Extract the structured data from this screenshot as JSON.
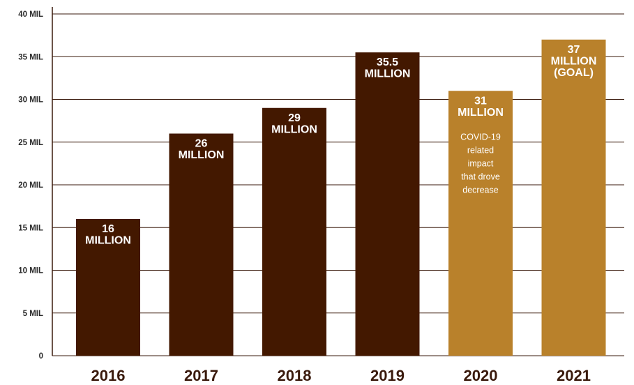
{
  "colors": {
    "actual": "#431800",
    "projected": "#b9812b",
    "grid": "#3a1a0c",
    "category_text": "#3a1a0c"
  },
  "chart_data": {
    "type": "bar",
    "categories": [
      "2016",
      "2017",
      "2018",
      "2019",
      "2020",
      "2021"
    ],
    "values": [
      16,
      26,
      29,
      35.5,
      31,
      37
    ],
    "value_unit": "million",
    "ylim": [
      0,
      40
    ],
    "yticks": [
      {
        "value": 0,
        "label": "0"
      },
      {
        "value": 5,
        "label": "5 MIL"
      },
      {
        "value": 10,
        "label": "10 MIL"
      },
      {
        "value": 15,
        "label": "15 MIL"
      },
      {
        "value": 20,
        "label": "20 MIL"
      },
      {
        "value": 25,
        "label": "25 MIL"
      },
      {
        "value": 30,
        "label": "30 MIL"
      },
      {
        "value": 35,
        "label": "35 MIL"
      },
      {
        "value": 40,
        "label": "40 MIL"
      }
    ],
    "grid": true,
    "bar_labels": [
      [
        "16",
        "MILLION"
      ],
      [
        "26",
        "MILLION"
      ],
      [
        "29",
        "MILLION"
      ],
      [
        "35.5",
        "MILLION"
      ],
      [
        "31",
        "MILLION"
      ],
      [
        "37",
        "MILLION",
        "(GOAL)"
      ]
    ],
    "bar_colors": [
      "actual",
      "actual",
      "actual",
      "actual",
      "projected",
      "projected"
    ],
    "annotations": [
      {
        "category": "2020",
        "lines": [
          "COVID-19",
          "related",
          "impact",
          "that drove",
          "decrease"
        ]
      }
    ],
    "title": "",
    "xlabel": "",
    "ylabel": ""
  }
}
